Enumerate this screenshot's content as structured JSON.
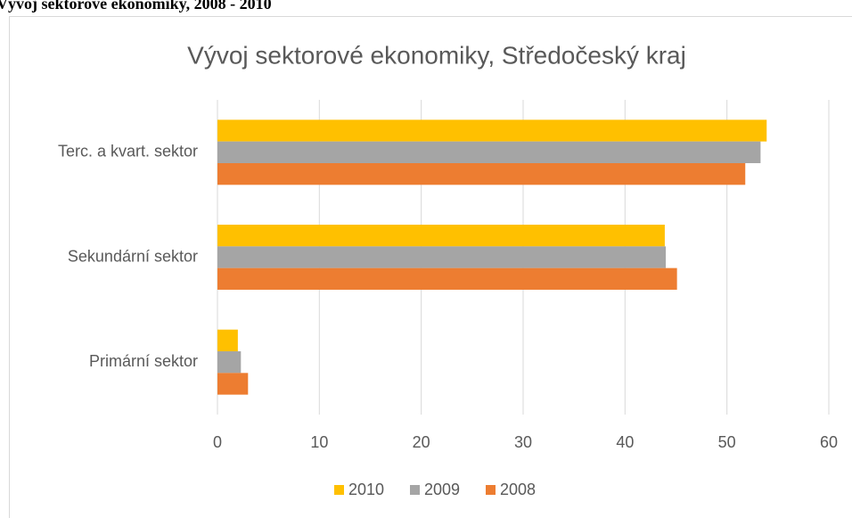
{
  "caption": "Vývoj sektorové ekonomiky, 2008 - 2010",
  "chart_data": {
    "type": "barh",
    "title": "Vývoj sektorové ekonomiky, Středočeský kraj",
    "categories": [
      "Terc. a kvart. sektor",
      "Sekundární sektor",
      "Primární sektor"
    ],
    "series": [
      {
        "name": "2010",
        "color": "#ffc000",
        "values": [
          53.9,
          43.9,
          2.0
        ]
      },
      {
        "name": "2009",
        "color": "#a5a5a5",
        "values": [
          53.3,
          44.0,
          2.3
        ]
      },
      {
        "name": "2008",
        "color": "#ed7d31",
        "values": [
          51.8,
          45.1,
          3.0
        ]
      }
    ],
    "xlim": [
      0,
      60
    ],
    "xticks": [
      0,
      10,
      20,
      30,
      40,
      50,
      60
    ],
    "grid": true,
    "legend": "bottom"
  }
}
